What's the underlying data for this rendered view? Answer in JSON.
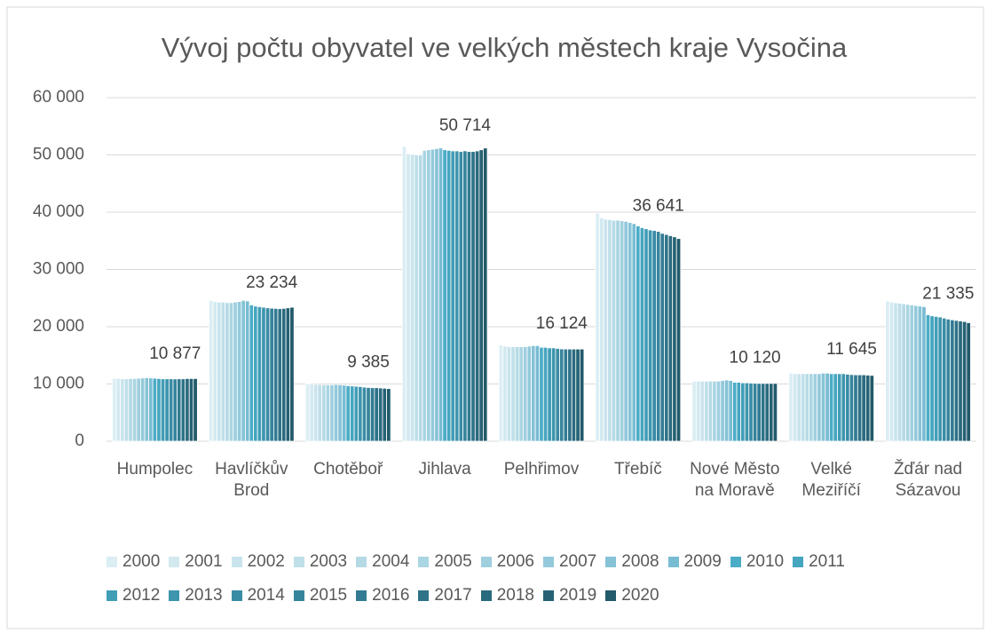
{
  "chart_data": {
    "type": "bar",
    "title": "Vývoj počtu obyvatel ve velkých městech kraje Vysočina",
    "categories": [
      "Humpolec",
      "Havlíčkův Brod",
      "Chotěboř",
      "Jihlava",
      "Pelhřimov",
      "Třebíč",
      "Nové Město na Moravě",
      "Velké Meziříčí",
      "Žďár nad Sázavou"
    ],
    "ylim": [
      0,
      60000
    ],
    "yticks": [
      0,
      {
        "value": 10000,
        "label": "10 000"
      },
      {
        "value": 20000,
        "label": "20 000"
      },
      {
        "value": 30000,
        "label": "30 000"
      },
      {
        "value": 40000,
        "label": "40 000"
      },
      {
        "value": 50000,
        "label": "50 000"
      },
      {
        "value": 60000,
        "label": "60 000"
      }
    ],
    "grid": true,
    "legend": "bottom",
    "series": [
      {
        "name": "2000",
        "color": "#dbeef3",
        "values": [
          11000,
          24600,
          10000,
          51500,
          16800,
          39800,
          10500,
          11900,
          24500
        ]
      },
      {
        "name": "2001",
        "color": "#d2e9f0",
        "values": [
          10950,
          24400,
          9950,
          50200,
          16600,
          39000,
          10500,
          11800,
          24300
        ]
      },
      {
        "name": "2002",
        "color": "#c9e4ed",
        "values": [
          10900,
          24300,
          9900,
          50100,
          16500,
          38800,
          10500,
          11800,
          24200
        ]
      },
      {
        "name": "2003",
        "color": "#bfdfe9",
        "values": [
          10900,
          24300,
          9900,
          50000,
          16500,
          38700,
          10500,
          11800,
          24100
        ]
      },
      {
        "name": "2004",
        "color": "#b5dae6",
        "values": [
          10950,
          24200,
          9850,
          50000,
          16500,
          38600,
          10500,
          11800,
          24000
        ]
      },
      {
        "name": "2005",
        "color": "#aad5e2",
        "values": [
          10950,
          24200,
          9850,
          50800,
          16500,
          38600,
          10500,
          11800,
          23900
        ]
      },
      {
        "name": "2006",
        "color": "#9fcfdf",
        "values": [
          11000,
          24300,
          9850,
          50900,
          16500,
          38500,
          10500,
          11800,
          23800
        ]
      },
      {
        "name": "2007",
        "color": "#93c9db",
        "values": [
          11050,
          24400,
          9900,
          51000,
          16600,
          38400,
          10600,
          11800,
          23700
        ]
      },
      {
        "name": "2008",
        "color": "#86c3d7",
        "values": [
          11100,
          24600,
          9850,
          51100,
          16700,
          38200,
          10700,
          11900,
          23600
        ]
      },
      {
        "name": "2009",
        "color": "#78bcd3",
        "values": [
          11050,
          24500,
          9800,
          51200,
          16700,
          38000,
          10600,
          11900,
          23500
        ]
      },
      {
        "name": "2010",
        "color": "#4bacc6",
        "values": [
          11000,
          23800,
          9700,
          50900,
          16400,
          37600,
          10300,
          11800,
          22100
        ]
      },
      {
        "name": "2011",
        "color": "#46a5bf",
        "values": [
          10950,
          23600,
          9650,
          50800,
          16400,
          37300,
          10300,
          11800,
          21900
        ]
      },
      {
        "name": "2012",
        "color": "#429db7",
        "values": [
          10900,
          23500,
          9600,
          50700,
          16300,
          37100,
          10200,
          11800,
          21800
        ]
      },
      {
        "name": "2013",
        "color": "#3e95ae",
        "values": [
          10900,
          23400,
          9550,
          50700,
          16300,
          36900,
          10200,
          11800,
          21700
        ]
      },
      {
        "name": "2014",
        "color": "#3a8ca5",
        "values": [
          10900,
          23300,
          9450,
          50600,
          16200,
          36800,
          10150,
          11700,
          21500
        ]
      },
      {
        "name": "2015",
        "color": "#36849c",
        "values": [
          10877,
          23234,
          9385,
          50714,
          16124,
          36641,
          10120,
          11645,
          21335
        ],
        "value_labels": [
          "10 877",
          "23 234",
          "9 385",
          "50 714",
          "16 124",
          "36 641",
          "10 120",
          "11 645",
          "21 335"
        ]
      },
      {
        "name": "2016",
        "color": "#327b92",
        "values": [
          10900,
          23200,
          9350,
          50600,
          16100,
          36300,
          10100,
          11600,
          21200
        ]
      },
      {
        "name": "2017",
        "color": "#2e7388",
        "values": [
          10900,
          23150,
          9350,
          50600,
          16100,
          36100,
          10100,
          11600,
          21100
        ]
      },
      {
        "name": "2018",
        "color": "#2a6a7e",
        "values": [
          10950,
          23200,
          9300,
          50700,
          16100,
          35900,
          10100,
          11600,
          21000
        ]
      },
      {
        "name": "2019",
        "color": "#266274",
        "values": [
          10950,
          23300,
          9250,
          50900,
          16100,
          35700,
          10100,
          11550,
          20900
        ]
      },
      {
        "name": "2020",
        "color": "#225a6b",
        "values": [
          10950,
          23400,
          9200,
          51200,
          16100,
          35400,
          10100,
          11500,
          20700
        ]
      }
    ]
  }
}
